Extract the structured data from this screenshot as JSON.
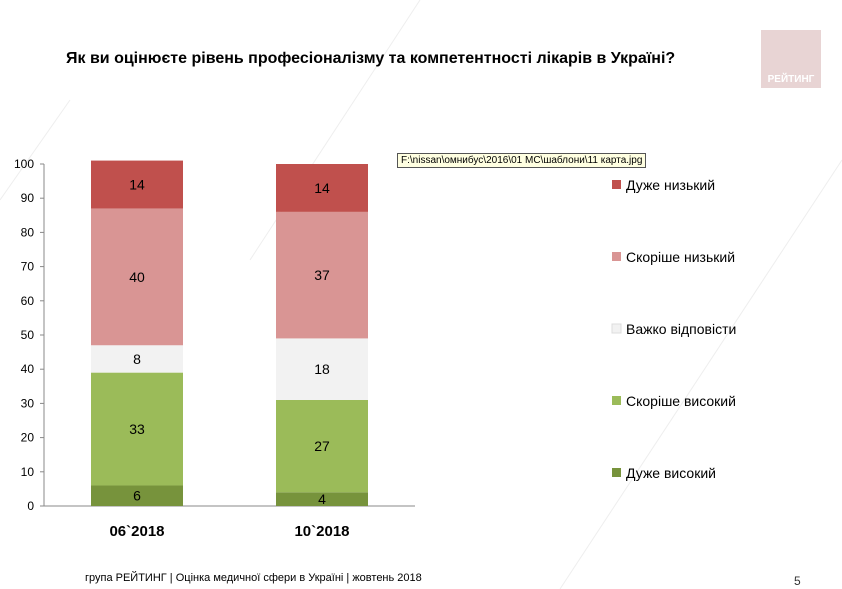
{
  "slide": {
    "title": "Як ви оцінюєте рівень професіоналізму та компетентності лікарів в Україні?",
    "logo_text": "РЕЙТИНГ",
    "tooltip": "F:\\nissan\\омнибус\\2016\\01 МС\\шаблони\\11 карта.jpg",
    "footer": "група РЕЙТИНГ  |  Оцінка медичної сфери в Україні  |  жовтень 2018",
    "page_number": "5"
  },
  "chart_data": {
    "type": "bar",
    "stacked": true,
    "categories": [
      "06`2018",
      "10`2018"
    ],
    "ylim": [
      0,
      100
    ],
    "yticks": [
      "0",
      "10",
      "20",
      "30",
      "40",
      "50",
      "60",
      "70",
      "80",
      "90",
      "100"
    ],
    "legend_position": "right",
    "series": [
      {
        "name": "Дуже високий",
        "color": "#77933c",
        "values": [
          6,
          4
        ]
      },
      {
        "name": "Скоріше високий",
        "color": "#9bbb59",
        "values": [
          33,
          27
        ]
      },
      {
        "name": "Важко відповісти",
        "color": "#f2f2f2",
        "values": [
          8,
          18
        ]
      },
      {
        "name": "Скоріше низький",
        "color": "#d99594",
        "values": [
          40,
          37
        ]
      },
      {
        "name": "Дуже низький",
        "color": "#c0504d",
        "values": [
          14,
          14
        ]
      }
    ]
  }
}
